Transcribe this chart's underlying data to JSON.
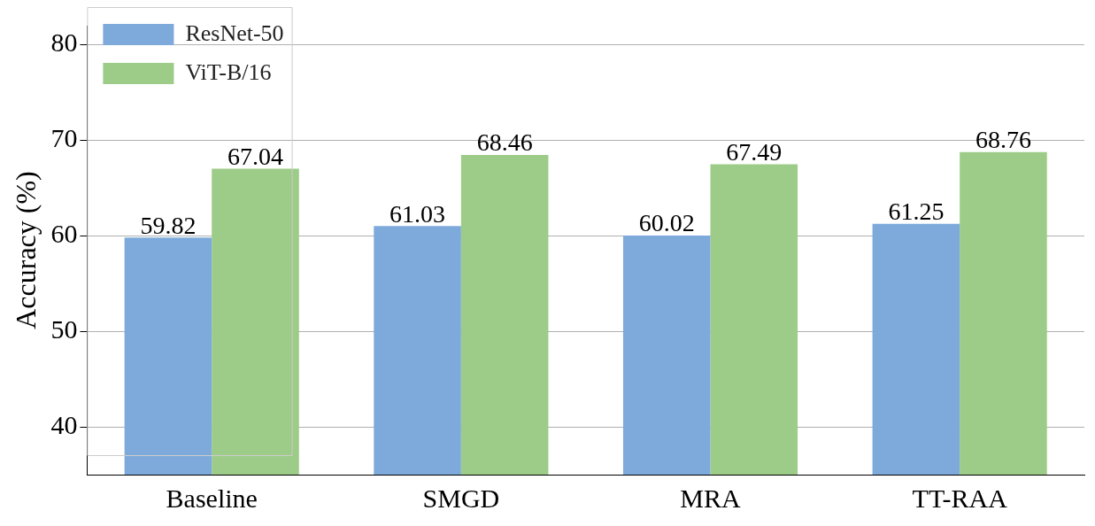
{
  "chart_data": {
    "type": "bar",
    "ylabel": "Accuracy (%)",
    "categories": [
      "Baseline",
      "SMGD",
      "MRA",
      "TT-RAA"
    ],
    "series": [
      {
        "name": "ResNet-50",
        "color": "#7eaadb",
        "values": [
          59.82,
          61.03,
          60.02,
          61.25
        ]
      },
      {
        "name": "ViT-B/16",
        "color": "#9ccc88",
        "values": [
          67.04,
          68.46,
          67.49,
          68.76
        ]
      }
    ],
    "ylim": [
      35,
      82
    ],
    "yticks": [
      40,
      50,
      60,
      70,
      80
    ],
    "grid": "y",
    "legend": "top left",
    "data_labels": true
  }
}
